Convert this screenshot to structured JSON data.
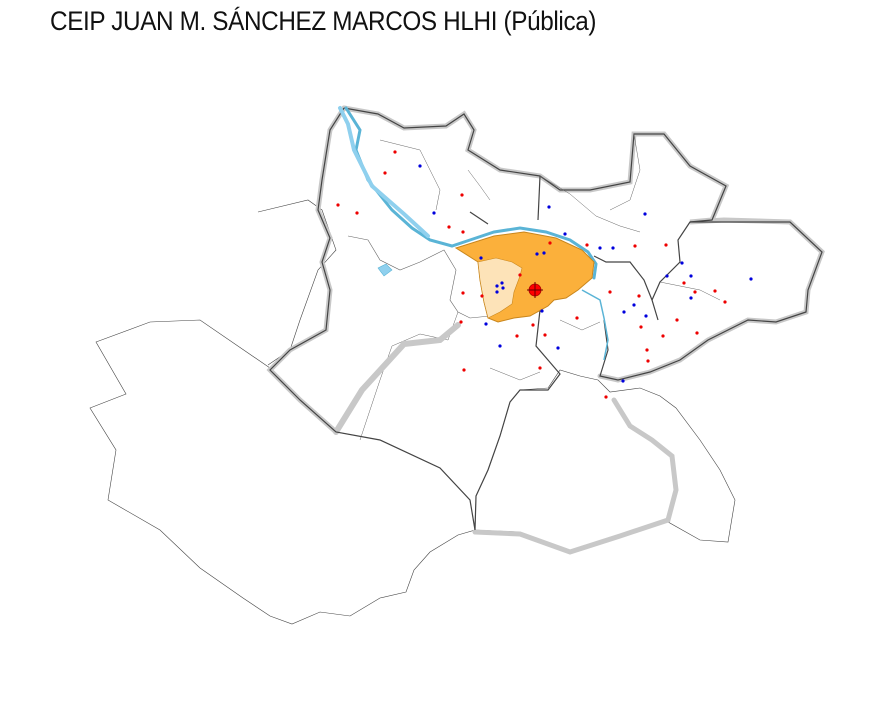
{
  "title": "CEIP JUAN M. SÁNCHEZ MARCOS HLHI (Pública)",
  "colors": {
    "area_fill": "#fbb03b",
    "area_stroke": "#c9861c",
    "subarea_fill": "#fde3b8",
    "river": "#5ab4d6",
    "river_light": "#8fd0ee",
    "major_road": "#bdbdbd",
    "district_line": "#555555",
    "outline": "#444444",
    "marker": "#ff0000",
    "public_point": "#0000dd",
    "private_point": "#ee0000"
  },
  "legend": {
    "marker_icon": "crosshair-marker-icon",
    "point_colors": [
      "blue",
      "red"
    ]
  },
  "map_data": {
    "type": "point-map",
    "blue_points": [
      [
        434,
        213
      ],
      [
        420,
        166
      ],
      [
        544,
        253
      ],
      [
        565,
        234
      ],
      [
        549,
        207
      ],
      [
        600,
        248
      ],
      [
        613,
        248
      ],
      [
        645,
        214
      ],
      [
        682,
        263
      ],
      [
        667,
        276
      ],
      [
        691,
        276
      ],
      [
        691,
        298
      ],
      [
        751,
        279
      ],
      [
        624,
        312
      ],
      [
        634,
        305
      ],
      [
        646,
        316
      ],
      [
        623,
        381
      ],
      [
        558,
        348
      ],
      [
        542,
        311
      ],
      [
        500,
        346
      ],
      [
        486,
        324
      ],
      [
        497,
        292
      ],
      [
        497,
        286
      ],
      [
        502,
        283
      ],
      [
        503,
        288
      ],
      [
        537,
        254
      ],
      [
        481,
        258
      ]
    ],
    "red_points": [
      [
        395,
        152
      ],
      [
        385,
        173
      ],
      [
        338,
        205
      ],
      [
        357,
        213
      ],
      [
        462,
        195
      ],
      [
        449,
        227
      ],
      [
        463,
        232
      ],
      [
        550,
        243
      ],
      [
        520,
        275
      ],
      [
        587,
        245
      ],
      [
        635,
        246
      ],
      [
        666,
        245
      ],
      [
        684,
        283
      ],
      [
        695,
        292
      ],
      [
        715,
        291
      ],
      [
        725,
        302
      ],
      [
        610,
        292
      ],
      [
        639,
        296
      ],
      [
        641,
        327
      ],
      [
        677,
        320
      ],
      [
        697,
        333
      ],
      [
        663,
        336
      ],
      [
        647,
        350
      ],
      [
        648,
        361
      ],
      [
        606,
        397
      ],
      [
        577,
        318
      ],
      [
        545,
        335
      ],
      [
        533,
        325
      ],
      [
        517,
        336
      ],
      [
        461,
        322
      ],
      [
        463,
        293
      ],
      [
        464,
        370
      ],
      [
        540,
        368
      ],
      [
        482,
        296
      ]
    ],
    "marker": [
      535,
      290
    ]
  }
}
